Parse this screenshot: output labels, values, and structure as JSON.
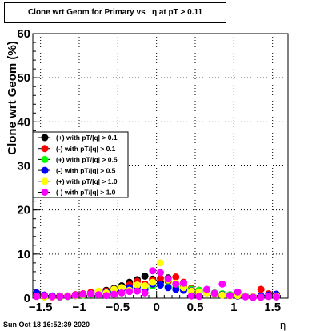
{
  "title": "Clone wrt Geom for Primary vs   η at pT > 0.11",
  "timestamp": "Sun Oct 18 16:52:39 2020",
  "chart_data": {
    "type": "scatter",
    "title": "Clone wrt Geom for Primary vs   η at pT > 0.11",
    "xlabel": "η",
    "ylabel": "Clone wrt Geom (%)",
    "xlim": [
      -1.6,
      1.7
    ],
    "ylim": [
      0,
      60
    ],
    "x_ticks": [
      -1.5,
      -1,
      -0.5,
      0,
      0.5,
      1,
      1.5
    ],
    "x_tick_labels": [
      "−1.5",
      "−1",
      "−0.5",
      "0",
      "0.5",
      "1",
      "1.5"
    ],
    "y_ticks": [
      0,
      10,
      20,
      30,
      40,
      50,
      60
    ],
    "y_tick_labels": [
      "0",
      "10",
      "20",
      "30",
      "40",
      "50",
      "60"
    ],
    "grid": true,
    "legend_position": "center-left",
    "series": [
      {
        "name": "(+) with pT/|q| > 0.1",
        "color": "#000000",
        "x": [
          -1.55,
          -1.45,
          -1.35,
          -1.25,
          -1.15,
          -1.05,
          -0.95,
          -0.85,
          -0.75,
          -0.65,
          -0.55,
          -0.45,
          -0.35,
          -0.25,
          -0.15,
          -0.05,
          0.05,
          0.15,
          0.25,
          0.35,
          0.45,
          0.55,
          0.65,
          0.75,
          0.85,
          0.95,
          1.05,
          1.15,
          1.25,
          1.35,
          1.45,
          1.55
        ],
        "y": [
          0.8,
          0.5,
          0.4,
          0.3,
          0.4,
          0.6,
          0.9,
          1.2,
          1.5,
          1.8,
          2.2,
          2.8,
          3.6,
          4.2,
          5.0,
          4.3,
          3.6,
          4.6,
          3.2,
          2.6,
          2.0,
          1.6,
          1.4,
          1.1,
          0.9,
          0.6,
          0.5,
          0.4,
          0.3,
          0.5,
          0.4,
          0.6
        ]
      },
      {
        "name": "(-) with pT/|q| > 0.1",
        "color": "#ff0000",
        "x": [
          -1.55,
          -1.45,
          -1.35,
          -1.25,
          -1.15,
          -1.05,
          -0.95,
          -0.85,
          -0.75,
          -0.65,
          -0.55,
          -0.45,
          -0.35,
          -0.25,
          -0.15,
          -0.05,
          0.05,
          0.15,
          0.25,
          0.35,
          0.45,
          0.55,
          0.65,
          0.75,
          0.85,
          0.95,
          1.05,
          1.15,
          1.25,
          1.35,
          1.45,
          1.55
        ],
        "y": [
          0.6,
          0.3,
          0.4,
          0.5,
          0.5,
          0.8,
          1.0,
          1.3,
          1.4,
          1.6,
          2.0,
          2.3,
          3.0,
          3.8,
          3.2,
          4.0,
          4.5,
          3.8,
          4.8,
          3.6,
          2.2,
          1.8,
          1.5,
          1.0,
          0.8,
          0.7,
          0.6,
          0.4,
          0.2,
          2.0,
          1.0,
          0.5
        ]
      },
      {
        "name": "(+) with pT/|q| > 0.5",
        "color": "#00ff00",
        "x": [
          -1.55,
          -1.45,
          -1.35,
          -1.25,
          -1.15,
          -1.05,
          -0.95,
          -0.85,
          -0.75,
          -0.65,
          -0.55,
          -0.45,
          -0.35,
          -0.25,
          -0.15,
          -0.05,
          0.05,
          0.15,
          0.25,
          0.35,
          0.45,
          0.55,
          0.65,
          0.75,
          0.85,
          0.95,
          1.05,
          1.15,
          1.25,
          1.35,
          1.45,
          1.55
        ],
        "y": [
          0.5,
          0.3,
          0.3,
          0.2,
          0.4,
          0.6,
          0.7,
          0.9,
          1.1,
          1.2,
          1.5,
          1.8,
          2.2,
          2.6,
          2.4,
          2.8,
          3.0,
          2.6,
          2.4,
          2.2,
          2.0,
          1.8,
          1.6,
          1.2,
          1.0,
          0.8,
          0.6,
          0.5,
          0.3,
          0.4,
          0.5,
          0.6
        ]
      },
      {
        "name": "(-) with pT/|q| > 0.5",
        "color": "#0000ff",
        "x": [
          -1.55,
          -1.45,
          -1.35,
          -1.25,
          -1.15,
          -1.05,
          -0.95,
          -0.85,
          -0.75,
          -0.65,
          -0.55,
          -0.45,
          -0.35,
          -0.25,
          -0.15,
          -0.05,
          0.05,
          0.15,
          0.25,
          0.35,
          0.45,
          0.55,
          0.65,
          0.75,
          0.85,
          0.95,
          1.05,
          1.15,
          1.25,
          1.35,
          1.45,
          1.55
        ],
        "y": [
          1.2,
          0.7,
          0.5,
          0.4,
          0.5,
          0.6,
          0.8,
          1.0,
          1.2,
          1.4,
          1.6,
          1.9,
          2.4,
          2.6,
          2.0,
          3.2,
          3.0,
          2.4,
          2.0,
          1.8,
          1.7,
          1.4,
          1.2,
          1.0,
          0.8,
          0.6,
          0.5,
          0.4,
          0.3,
          0.5,
          0.7,
          0.9
        ]
      },
      {
        "name": "(+) with pT/|q| > 1.0",
        "color": "#ffff00",
        "x": [
          -1.55,
          -1.45,
          -1.35,
          -1.25,
          -1.15,
          -1.05,
          -0.95,
          -0.85,
          -0.75,
          -0.65,
          -0.55,
          -0.45,
          -0.35,
          -0.25,
          -0.15,
          -0.05,
          0.05,
          0.15,
          0.25,
          0.35,
          0.45,
          0.55,
          0.65,
          0.75,
          0.85,
          0.95,
          1.05,
          1.15,
          1.25,
          1.35,
          1.45,
          1.55
        ],
        "y": [
          0.4,
          0.3,
          0.2,
          0.3,
          0.5,
          0.6,
          0.8,
          1.0,
          1.6,
          1.2,
          2.0,
          2.4,
          1.8,
          3.0,
          2.8,
          3.6,
          8.0,
          4.2,
          3.4,
          2.4,
          1.6,
          1.4,
          1.2,
          0.9,
          0.7,
          0.5,
          0.6,
          0.4,
          0.3,
          0.2,
          0.4,
          0.5
        ]
      },
      {
        "name": "(-) with pT/|q| > 1.0",
        "color": "#ff00ff",
        "x": [
          -1.55,
          -1.45,
          -1.35,
          -1.25,
          -1.15,
          -1.05,
          -0.95,
          -0.85,
          -0.75,
          -0.65,
          -0.55,
          -0.45,
          -0.35,
          -0.25,
          -0.15,
          -0.05,
          0.05,
          0.15,
          0.25,
          0.35,
          0.45,
          0.55,
          0.65,
          0.75,
          0.85,
          0.95,
          1.05,
          1.15,
          1.25,
          1.35,
          1.45,
          1.55
        ],
        "y": [
          0.4,
          0.6,
          0.3,
          0.3,
          0.4,
          0.7,
          0.9,
          1.0,
          0.8,
          0.6,
          0.9,
          1.2,
          1.5,
          1.6,
          1.2,
          6.2,
          5.8,
          4.4,
          3.2,
          3.4,
          0.5,
          0.4,
          2.0,
          1.1,
          3.2,
          0.6,
          1.4,
          0.3,
          0.2,
          0.2,
          0.4,
          0.3
        ]
      }
    ]
  }
}
